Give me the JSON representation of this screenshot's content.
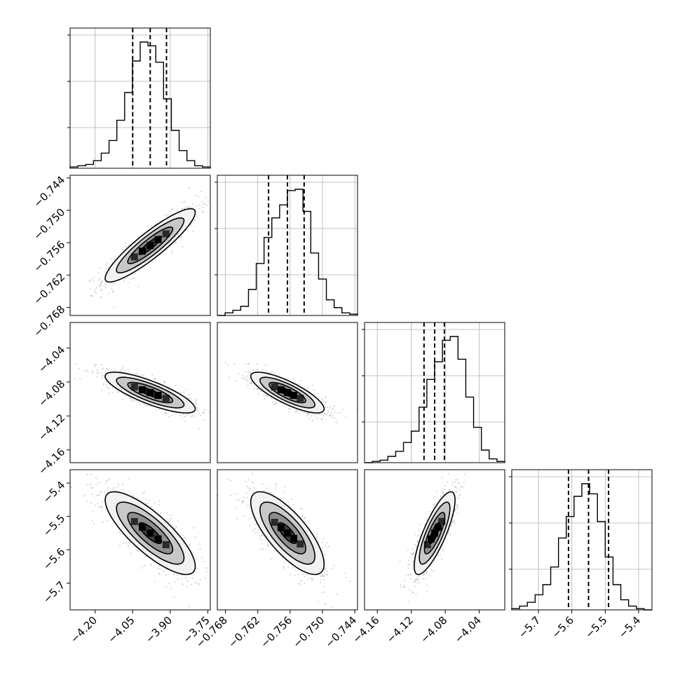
{
  "chart_data": {
    "type": "corner",
    "title": "",
    "params": [
      {
        "mean": -3.98,
        "sd": 0.09,
        "range": [
          -4.3,
          -3.74
        ],
        "ticks": [
          "−4.20",
          "−4.05",
          "−3.90",
          "−3.75"
        ],
        "tick_values": [
          -4.2,
          -4.05,
          -3.9,
          -3.75
        ],
        "quantiles": [
          -4.05,
          -3.98,
          -3.915
        ]
      },
      {
        "mean": -0.7565,
        "sd": 0.0034,
        "range": [
          -0.7695,
          -0.7435
        ],
        "ticks": [
          "−0.768",
          "−0.762",
          "−0.756",
          "−0.750",
          "−0.744"
        ],
        "tick_values": [
          -0.768,
          -0.762,
          -0.756,
          -0.75,
          -0.744
        ],
        "quantiles": [
          -0.76,
          -0.7565,
          -0.7534
        ]
      },
      {
        "mean": -4.0925,
        "sd": 0.012,
        "range": [
          -4.175,
          -4.01
        ],
        "ticks": [
          "−4.16",
          "−4.12",
          "−4.08",
          "−4.04"
        ],
        "tick_values": [
          -4.16,
          -4.12,
          -4.08,
          -4.04
        ],
        "quantiles": [
          -4.105,
          -4.0925,
          -4.081
        ]
      },
      {
        "mean": -5.55,
        "sd": 0.062,
        "range": [
          -5.78,
          -5.36
        ],
        "ticks": [
          "−5.7",
          "−5.6",
          "−5.5",
          "−5.4"
        ],
        "tick_values": [
          -5.7,
          -5.6,
          -5.5,
          -5.4
        ],
        "quantiles": [
          -5.61,
          -5.55,
          -5.49
        ]
      }
    ],
    "correlations": [
      {
        "i": 1,
        "j": 0,
        "r": 0.9
      },
      {
        "i": 2,
        "j": 0,
        "r": -0.8
      },
      {
        "i": 2,
        "j": 1,
        "r": -0.8
      },
      {
        "i": 3,
        "j": 0,
        "r": -0.8
      },
      {
        "i": 3,
        "j": 1,
        "r": -0.75
      },
      {
        "i": 3,
        "j": 2,
        "r": 0.8
      }
    ],
    "histogram_counts": [
      [
        1,
        2,
        3,
        6,
        12,
        22,
        38,
        60,
        85,
        100,
        97,
        84,
        55,
        30,
        14,
        6,
        2,
        1
      ],
      [
        0,
        2,
        4,
        7,
        20,
        40,
        60,
        75,
        85,
        96,
        97,
        80,
        48,
        28,
        12,
        6,
        2,
        1
      ],
      [
        0,
        1,
        2,
        5,
        9,
        16,
        25,
        44,
        66,
        80,
        97,
        100,
        82,
        52,
        28,
        10,
        3,
        1
      ],
      [
        1,
        3,
        6,
        12,
        20,
        34,
        57,
        74,
        90,
        100,
        92,
        70,
        42,
        20,
        8,
        3,
        1,
        0
      ]
    ],
    "contour_levels_sigma": [
      0.5,
      1.0,
      1.5,
      2.0
    ],
    "grid": true,
    "show_y_ticks_on_histograms": false
  }
}
